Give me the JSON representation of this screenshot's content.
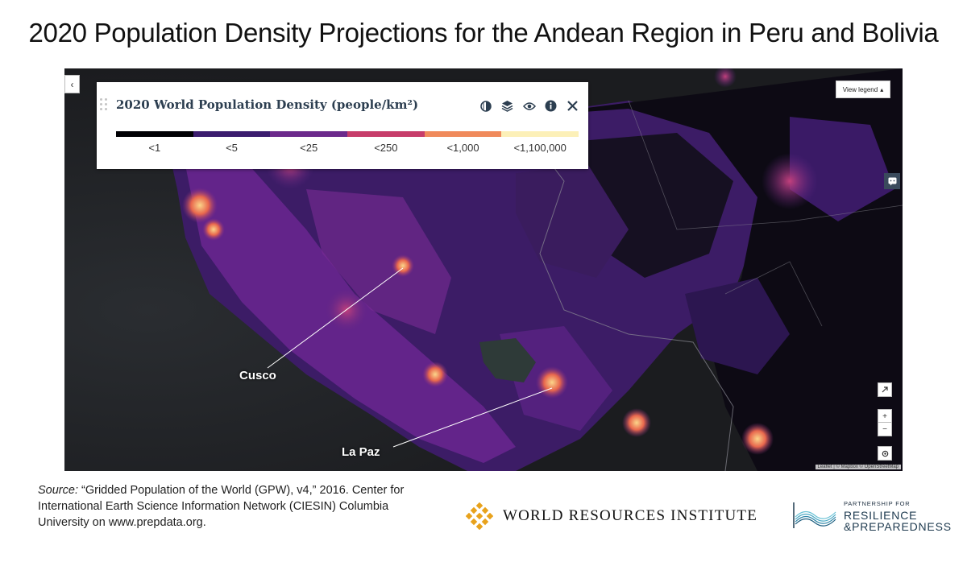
{
  "page": {
    "title": "2020 Population Density Projections for the Andean Region in Peru and Bolivia"
  },
  "legend": {
    "title": "2020 World Population Density (people/km²)",
    "bins": [
      {
        "label": "<1",
        "color": "#000004"
      },
      {
        "label": "<5",
        "color": "#3b1c6e"
      },
      {
        "label": "<25",
        "color": "#6c2a8c"
      },
      {
        "label": "<250",
        "color": "#c73d6a"
      },
      {
        "label": "<1,000",
        "color": "#f08a5b"
      },
      {
        "label": "<1,100,000",
        "color": "#fcf0b8"
      }
    ],
    "tools": [
      "opacity-icon",
      "layers-icon",
      "eye-icon",
      "info-icon",
      "close-icon"
    ]
  },
  "map": {
    "collapse_label": "‹",
    "view_legend_label": "View legend",
    "attribution": "Leaflet | © Mapbox © OpenStreetMap",
    "zoom_in_label": "+",
    "zoom_out_label": "−",
    "cities": {
      "cusco": "Cusco",
      "la_paz": "La Paz"
    }
  },
  "source": {
    "prefix": "Source:",
    "text": " “Gridded Population of the World (GPW), v4,” 2016. Center for International Earth Science Information Network (CIESIN) Columbia University on www.prepdata.org."
  },
  "logos": {
    "wri": "WORLD RESOURCES INSTITUTE",
    "prp_line1": "PARTNERSHIP FOR",
    "prp_line2": "RESILIENCE",
    "prp_line3": "&PREPAREDNESS"
  }
}
